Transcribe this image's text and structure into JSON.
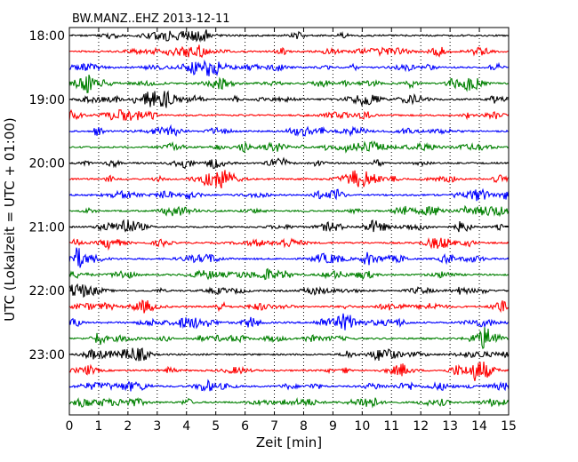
{
  "chart_data": {
    "type": "line",
    "title": "BW.MANZ..EHZ 2013-12-11",
    "xlabel": "Zeit  [min]",
    "ylabel": "UTC (Lokalzeit = UTC + 01:00)",
    "xlim": [
      0,
      15
    ],
    "x_ticks": [
      "0",
      "1",
      "2",
      "3",
      "4",
      "5",
      "6",
      "7",
      "8",
      "9",
      "10",
      "11",
      "12",
      "13",
      "14",
      "15"
    ],
    "y_tick_labels": [
      "18:00",
      "19:00",
      "20:00",
      "21:00",
      "22:00",
      "23:00"
    ],
    "rows_per_hour": 4,
    "row_count": 24,
    "row_colors": [
      "#000000",
      "#ff0000",
      "#0000ff",
      "#008000"
    ],
    "grid": "vertical dotted at each minute"
  }
}
